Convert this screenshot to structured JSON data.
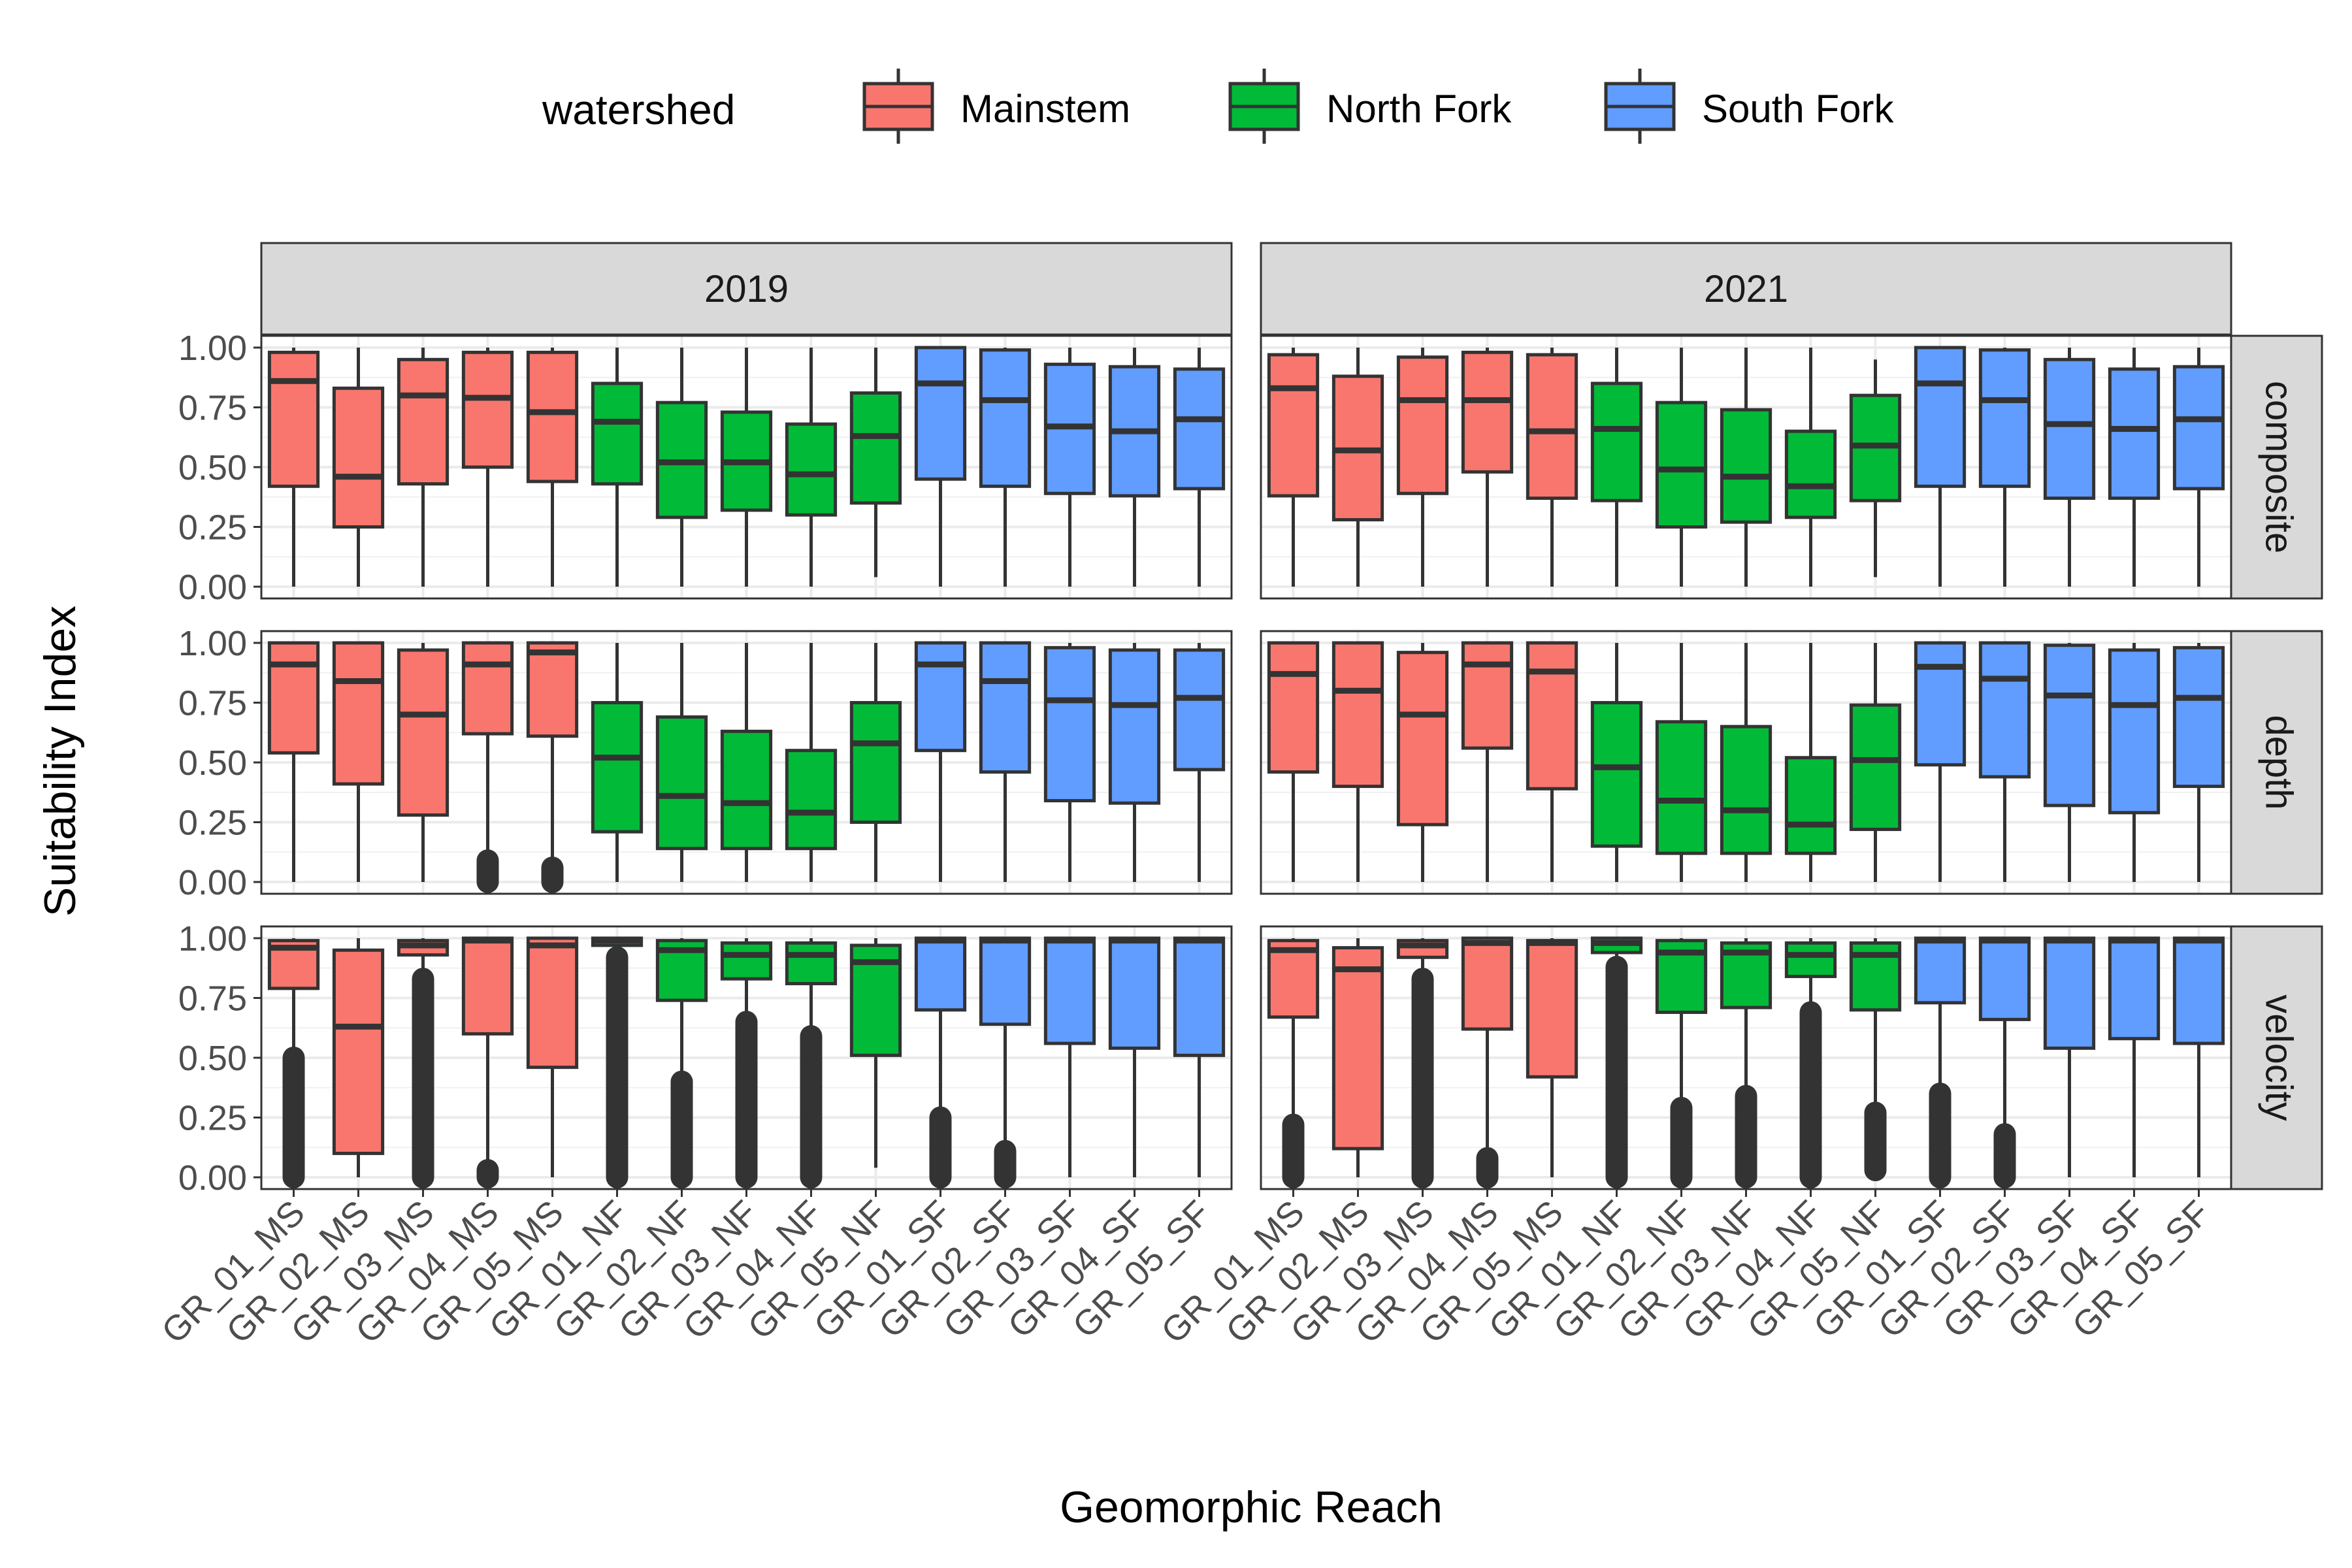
{
  "chart_data": {
    "type": "boxplot",
    "xlabel": "Geomorphic Reach",
    "ylabel": "Suitability Index",
    "ylim": [
      0,
      1
    ],
    "y_ticks": [
      "0.00",
      "0.25",
      "0.50",
      "0.75",
      "1.00"
    ],
    "y_tick_values": [
      0,
      0.25,
      0.5,
      0.75,
      1.0
    ],
    "legend": {
      "title": "watershed",
      "position": "top",
      "entries": [
        {
          "name": "Mainstem",
          "color": "#F8766D"
        },
        {
          "name": "North Fork",
          "color": "#00BA38"
        },
        {
          "name": "South Fork",
          "color": "#619CFF"
        }
      ]
    },
    "columns": [
      "2019",
      "2021"
    ],
    "rows": [
      "composite",
      "depth",
      "velocity"
    ],
    "categories": [
      "GR_01_MS",
      "GR_02_MS",
      "GR_03_MS",
      "GR_04_MS",
      "GR_05_MS",
      "GR_01_NF",
      "GR_02_NF",
      "GR_03_NF",
      "GR_04_NF",
      "GR_05_NF",
      "GR_01_SF",
      "GR_02_SF",
      "GR_03_SF",
      "GR_04_SF",
      "GR_05_SF"
    ],
    "category_watershed": [
      0,
      0,
      0,
      0,
      0,
      1,
      1,
      1,
      1,
      1,
      2,
      2,
      2,
      2,
      2
    ],
    "panels": [
      {
        "col": "2019",
        "row": "composite",
        "boxes": [
          [
            0.0,
            0.42,
            0.86,
            0.98,
            1.0
          ],
          [
            0.0,
            0.25,
            0.46,
            0.83,
            1.0
          ],
          [
            0.0,
            0.43,
            0.8,
            0.95,
            1.0
          ],
          [
            0.0,
            0.5,
            0.79,
            0.98,
            1.0
          ],
          [
            0.0,
            0.44,
            0.73,
            0.98,
            1.0
          ],
          [
            0.0,
            0.43,
            0.69,
            0.85,
            1.0
          ],
          [
            0.0,
            0.29,
            0.52,
            0.77,
            1.0
          ],
          [
            0.0,
            0.32,
            0.52,
            0.73,
            1.0
          ],
          [
            0.0,
            0.3,
            0.47,
            0.68,
            1.0
          ],
          [
            0.04,
            0.35,
            0.63,
            0.81,
            1.0
          ],
          [
            0.0,
            0.45,
            0.85,
            1.0,
            1.0
          ],
          [
            0.0,
            0.42,
            0.78,
            0.99,
            1.0
          ],
          [
            0.0,
            0.39,
            0.67,
            0.93,
            1.0
          ],
          [
            0.0,
            0.38,
            0.65,
            0.92,
            1.0
          ],
          [
            0.0,
            0.41,
            0.7,
            0.91,
            1.0
          ]
        ],
        "outliers": [
          null,
          null,
          null,
          null,
          null,
          null,
          null,
          null,
          null,
          null,
          null,
          null,
          null,
          null,
          null
        ]
      },
      {
        "col": "2021",
        "row": "composite",
        "boxes": [
          [
            0.0,
            0.38,
            0.83,
            0.97,
            1.0
          ],
          [
            0.0,
            0.28,
            0.57,
            0.88,
            1.0
          ],
          [
            0.0,
            0.39,
            0.78,
            0.96,
            1.0
          ],
          [
            0.0,
            0.48,
            0.78,
            0.98,
            1.0
          ],
          [
            0.0,
            0.37,
            0.65,
            0.97,
            1.0
          ],
          [
            0.0,
            0.36,
            0.66,
            0.85,
            1.0
          ],
          [
            0.0,
            0.25,
            0.49,
            0.77,
            1.0
          ],
          [
            0.0,
            0.27,
            0.46,
            0.74,
            1.0
          ],
          [
            0.0,
            0.29,
            0.42,
            0.65,
            1.0
          ],
          [
            0.04,
            0.36,
            0.59,
            0.8,
            0.95
          ],
          [
            0.0,
            0.42,
            0.85,
            1.0,
            1.0
          ],
          [
            0.0,
            0.42,
            0.78,
            0.99,
            1.0
          ],
          [
            0.0,
            0.37,
            0.68,
            0.95,
            1.0
          ],
          [
            0.0,
            0.37,
            0.66,
            0.91,
            1.0
          ],
          [
            0.0,
            0.41,
            0.7,
            0.92,
            1.0
          ]
        ],
        "outliers": [
          null,
          null,
          null,
          null,
          null,
          null,
          null,
          null,
          null,
          null,
          null,
          null,
          null,
          null,
          null
        ]
      },
      {
        "col": "2019",
        "row": "depth",
        "boxes": [
          [
            0.0,
            0.54,
            0.91,
            1.0,
            1.0
          ],
          [
            0.0,
            0.41,
            0.84,
            1.0,
            1.0
          ],
          [
            0.0,
            0.28,
            0.7,
            0.97,
            1.0
          ],
          [
            0.1,
            0.62,
            0.91,
            1.0,
            1.0
          ],
          [
            0.07,
            0.61,
            0.96,
            1.0,
            1.0
          ],
          [
            0.0,
            0.21,
            0.52,
            0.75,
            1.0
          ],
          [
            0.0,
            0.14,
            0.36,
            0.69,
            1.0
          ],
          [
            0.0,
            0.14,
            0.33,
            0.63,
            1.0
          ],
          [
            0.0,
            0.14,
            0.29,
            0.55,
            1.0
          ],
          [
            0.0,
            0.25,
            0.58,
            0.75,
            1.0
          ],
          [
            0.0,
            0.55,
            0.91,
            1.0,
            1.0
          ],
          [
            0.0,
            0.46,
            0.84,
            1.0,
            1.0
          ],
          [
            0.0,
            0.34,
            0.76,
            0.98,
            1.0
          ],
          [
            0.0,
            0.33,
            0.74,
            0.97,
            1.0
          ],
          [
            0.0,
            0.47,
            0.77,
            0.97,
            1.0
          ]
        ],
        "outliers": [
          null,
          null,
          null,
          [
            0.0,
            0.09
          ],
          [
            0.0,
            0.06
          ],
          null,
          null,
          null,
          null,
          null,
          null,
          null,
          null,
          null,
          null
        ]
      },
      {
        "col": "2021",
        "row": "depth",
        "boxes": [
          [
            0.0,
            0.46,
            0.87,
            1.0,
            1.0
          ],
          [
            0.0,
            0.4,
            0.8,
            1.0,
            1.0
          ],
          [
            0.0,
            0.24,
            0.7,
            0.96,
            1.0
          ],
          [
            0.0,
            0.56,
            0.91,
            1.0,
            1.0
          ],
          [
            0.0,
            0.39,
            0.88,
            1.0,
            1.0
          ],
          [
            0.0,
            0.15,
            0.48,
            0.75,
            1.0
          ],
          [
            0.0,
            0.12,
            0.34,
            0.67,
            1.0
          ],
          [
            0.0,
            0.12,
            0.3,
            0.65,
            1.0
          ],
          [
            0.0,
            0.12,
            0.24,
            0.52,
            1.0
          ],
          [
            0.0,
            0.22,
            0.51,
            0.74,
            1.0
          ],
          [
            0.0,
            0.49,
            0.9,
            1.0,
            1.0
          ],
          [
            0.0,
            0.44,
            0.85,
            1.0,
            1.0
          ],
          [
            0.0,
            0.32,
            0.78,
            0.99,
            1.0
          ],
          [
            0.0,
            0.29,
            0.74,
            0.97,
            1.0
          ],
          [
            0.0,
            0.4,
            0.77,
            0.98,
            1.0
          ]
        ],
        "outliers": [
          null,
          null,
          null,
          null,
          null,
          null,
          null,
          null,
          null,
          null,
          null,
          null,
          null,
          null,
          null
        ]
      },
      {
        "col": "2019",
        "row": "velocity",
        "boxes": [
          [
            0.52,
            0.79,
            0.96,
            0.99,
            1.0
          ],
          [
            0.0,
            0.1,
            0.63,
            0.95,
            1.0
          ],
          [
            0.85,
            0.93,
            0.97,
            0.99,
            1.0
          ],
          [
            0.0,
            0.6,
            0.99,
            1.0,
            1.0
          ],
          [
            0.0,
            0.46,
            0.97,
            1.0,
            1.0
          ],
          [
            0.93,
            0.97,
            0.99,
            1.0,
            1.0
          ],
          [
            0.42,
            0.74,
            0.95,
            0.99,
            1.0
          ],
          [
            0.67,
            0.83,
            0.93,
            0.98,
            1.0
          ],
          [
            0.6,
            0.81,
            0.93,
            0.98,
            1.0
          ],
          [
            0.04,
            0.51,
            0.9,
            0.97,
            1.0
          ],
          [
            0.27,
            0.7,
            0.99,
            1.0,
            1.0
          ],
          [
            0.12,
            0.64,
            0.99,
            1.0,
            1.0
          ],
          [
            0.0,
            0.56,
            0.99,
            1.0,
            1.0
          ],
          [
            0.0,
            0.54,
            0.99,
            1.0,
            1.0
          ],
          [
            0.0,
            0.51,
            0.99,
            1.0,
            1.0
          ]
        ],
        "outliers": [
          [
            0.0,
            0.5
          ],
          null,
          [
            0.0,
            0.83
          ],
          [
            0.0,
            0.03
          ],
          null,
          [
            0.0,
            0.92
          ],
          [
            0.0,
            0.4
          ],
          [
            0.0,
            0.65
          ],
          [
            0.0,
            0.59
          ],
          null,
          [
            0.0,
            0.25
          ],
          [
            0.0,
            0.11
          ],
          null,
          null,
          null
        ]
      },
      {
        "col": "2021",
        "row": "velocity",
        "boxes": [
          [
            0.23,
            0.67,
            0.95,
            0.99,
            1.0
          ],
          [
            0.0,
            0.12,
            0.87,
            0.96,
            1.0
          ],
          [
            0.84,
            0.92,
            0.97,
            0.99,
            1.0
          ],
          [
            0.09,
            0.62,
            0.98,
            1.0,
            1.0
          ],
          [
            0.0,
            0.42,
            0.98,
            0.99,
            1.0
          ],
          [
            0.89,
            0.94,
            0.98,
            1.0,
            1.0
          ],
          [
            0.3,
            0.69,
            0.94,
            0.99,
            1.0
          ],
          [
            0.34,
            0.71,
            0.94,
            0.98,
            1.0
          ],
          [
            0.69,
            0.84,
            0.93,
            0.98,
            1.0
          ],
          [
            0.27,
            0.7,
            0.93,
            0.98,
            1.0
          ],
          [
            0.35,
            0.73,
            0.99,
            1.0,
            1.0
          ],
          [
            0.18,
            0.66,
            0.99,
            1.0,
            1.0
          ],
          [
            0.0,
            0.54,
            0.99,
            1.0,
            1.0
          ],
          [
            0.0,
            0.58,
            0.99,
            1.0,
            1.0
          ],
          [
            0.0,
            0.56,
            0.99,
            1.0,
            1.0
          ]
        ],
        "outliers": [
          [
            0.0,
            0.22
          ],
          null,
          [
            0.0,
            0.83
          ],
          [
            0.0,
            0.08
          ],
          null,
          [
            0.0,
            0.88
          ],
          [
            0.0,
            0.29
          ],
          [
            0.0,
            0.34
          ],
          [
            0.0,
            0.69
          ],
          [
            0.03,
            0.27
          ],
          [
            0.0,
            0.35
          ],
          [
            0.0,
            0.18
          ],
          null,
          null,
          null
        ]
      }
    ]
  }
}
